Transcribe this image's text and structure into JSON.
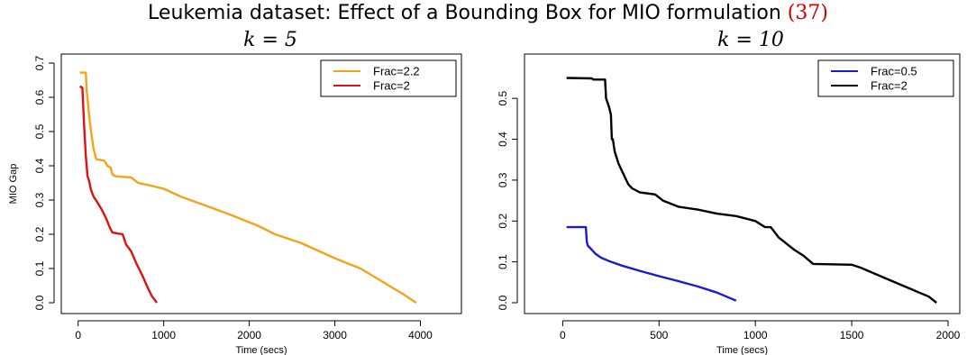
{
  "figure": {
    "title": "Leukemia dataset: Effect of a Bounding Box for MIO formulation",
    "ref": "(37)",
    "ref_color": "#d00000"
  },
  "chart_data": [
    {
      "type": "line",
      "subtitle": "k = 5",
      "xlabel": "Time (secs)",
      "ylabel": "MIO Gap",
      "xlim": [
        0,
        4000
      ],
      "ylim": [
        0,
        0.7
      ],
      "xticks": [
        0,
        1000,
        2000,
        3000,
        4000
      ],
      "yticks": [
        0.0,
        0.1,
        0.2,
        0.3,
        0.4,
        0.5,
        0.6,
        0.7
      ],
      "ytick_labels": [
        "0.0",
        "0.1",
        "0.2",
        "0.3",
        "0.4",
        "0.5",
        "0.6",
        "0.7"
      ],
      "grid": false,
      "legend_position": "top-right",
      "series": [
        {
          "name": "Frac=2.2",
          "color": "#f4a21a",
          "x": [
            20,
            90,
            100,
            140,
            180,
            200,
            210,
            300,
            320,
            340,
            380,
            400,
            430,
            500,
            620,
            700,
            800,
            1000,
            1200,
            1500,
            1800,
            2100,
            2300,
            2600,
            3000,
            3300,
            3600,
            3800,
            3950
          ],
          "y": [
            0.672,
            0.672,
            0.62,
            0.52,
            0.45,
            0.43,
            0.42,
            0.415,
            0.41,
            0.4,
            0.395,
            0.375,
            0.37,
            0.368,
            0.366,
            0.35,
            0.345,
            0.333,
            0.31,
            0.283,
            0.255,
            0.225,
            0.2,
            0.175,
            0.13,
            0.1,
            0.055,
            0.025,
            0.0
          ]
        },
        {
          "name": "Frac=2",
          "color": "#e01010",
          "x": [
            20,
            50,
            70,
            90,
            110,
            130,
            150,
            180,
            220,
            280,
            330,
            370,
            400,
            450,
            520,
            560,
            620,
            680,
            750,
            820,
            860,
            920
          ],
          "y": [
            0.632,
            0.628,
            0.52,
            0.43,
            0.37,
            0.355,
            0.33,
            0.31,
            0.295,
            0.27,
            0.245,
            0.22,
            0.205,
            0.203,
            0.2,
            0.17,
            0.15,
            0.115,
            0.08,
            0.04,
            0.02,
            0.0
          ]
        }
      ]
    },
    {
      "type": "line",
      "subtitle": "k = 10",
      "xlabel": "Time (secs)",
      "ylabel": "",
      "xlim": [
        0,
        2000
      ],
      "ylim": [
        0,
        0.55
      ],
      "xticks": [
        0,
        500,
        1000,
        1500,
        2000
      ],
      "yticks": [
        0.0,
        0.1,
        0.2,
        0.3,
        0.4,
        0.5
      ],
      "ytick_labels": [
        "0.0",
        "0.1",
        "0.2",
        "0.3",
        "0.4",
        "0.5"
      ],
      "grid": false,
      "legend_position": "top-right",
      "series": [
        {
          "name": "Frac=0.5",
          "color": "#1a1ad0",
          "x": [
            20,
            120,
            125,
            130,
            150,
            170,
            200,
            240,
            300,
            400,
            500,
            600,
            700,
            800,
            900
          ],
          "y": [
            0.185,
            0.185,
            0.15,
            0.14,
            0.13,
            0.12,
            0.11,
            0.102,
            0.092,
            0.078,
            0.065,
            0.053,
            0.04,
            0.025,
            0.005
          ]
        },
        {
          "name": "Frac=2",
          "color": "#000000",
          "x": [
            20,
            150,
            160,
            220,
            225,
            240,
            250,
            255,
            260,
            270,
            290,
            320,
            340,
            360,
            400,
            480,
            520,
            600,
            700,
            800,
            900,
            1000,
            1050,
            1080,
            1120,
            1200,
            1250,
            1300,
            1500,
            1550,
            1600,
            1700,
            1800,
            1900,
            1940
          ],
          "y": [
            0.55,
            0.549,
            0.546,
            0.546,
            0.5,
            0.48,
            0.46,
            0.4,
            0.4,
            0.37,
            0.34,
            0.31,
            0.29,
            0.28,
            0.27,
            0.265,
            0.25,
            0.235,
            0.228,
            0.218,
            0.212,
            0.2,
            0.185,
            0.185,
            0.16,
            0.13,
            0.115,
            0.095,
            0.093,
            0.085,
            0.075,
            0.055,
            0.035,
            0.015,
            0.0
          ]
        }
      ]
    }
  ]
}
